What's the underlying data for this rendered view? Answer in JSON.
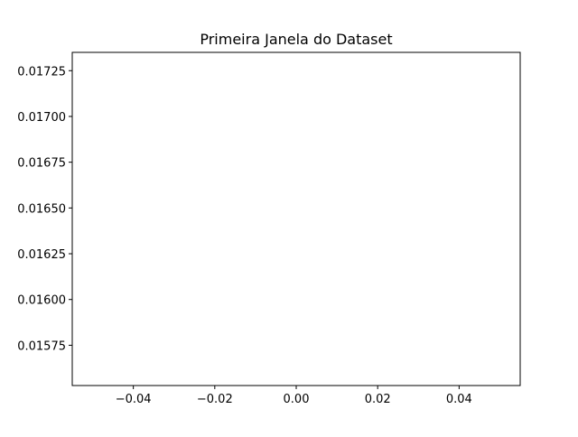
{
  "chart_data": {
    "type": "line",
    "title": "Primeira Janela do Dataset",
    "xlabel": "",
    "ylabel": "",
    "xlim": [
      -0.055,
      0.055
    ],
    "ylim": [
      0.01553,
      0.01735
    ],
    "x_ticks": [
      -0.04,
      -0.02,
      0.0,
      0.02,
      0.04
    ],
    "x_tick_labels": [
      "−0.04",
      "−0.02",
      "0.00",
      "0.02",
      "0.04"
    ],
    "y_ticks": [
      0.01575,
      0.016,
      0.01625,
      0.0165,
      0.01675,
      0.017,
      0.01725
    ],
    "y_tick_labels": [
      "0.01575",
      "0.01600",
      "0.01625",
      "0.01650",
      "0.01675",
      "0.01700",
      "0.01725"
    ],
    "series": [],
    "grid": false,
    "legend": false,
    "colors": {
      "axes": "#000000",
      "background": "#ffffff"
    }
  }
}
